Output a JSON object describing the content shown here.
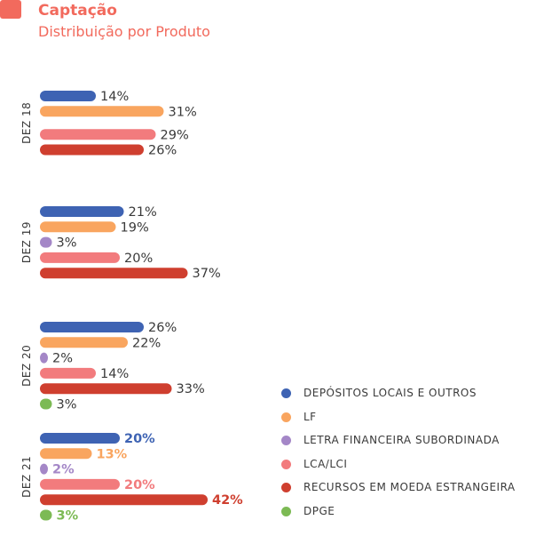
{
  "header": {
    "title": "Captação",
    "subtitle": "Distribuição por Produto"
  },
  "colors": {
    "accent": "#f26a5d",
    "depositos": "#3e63b3",
    "lf": "#f9a55f",
    "letra": "#a487c7",
    "lca": "#f27b7d",
    "recursos": "#cf3f2f",
    "dpge": "#7cba54"
  },
  "legend": [
    {
      "label": "DEPÓSITOS LOCAIS E OUTROS",
      "color": "#3e63b3"
    },
    {
      "label": "LF",
      "color": "#f9a55f"
    },
    {
      "label": "LETRA FINANCEIRA SUBORDINADA",
      "color": "#a487c7"
    },
    {
      "label": "LCA/LCI",
      "color": "#f27b7d"
    },
    {
      "label": "RECURSOS EM MOEDA ESTRANGEIRA",
      "color": "#cf3f2f"
    },
    {
      "label": "DPGE",
      "color": "#7cba54"
    }
  ],
  "chart_data": {
    "type": "bar",
    "orientation": "horizontal",
    "title": "Captação",
    "subtitle": "Distribuição por Produto",
    "unit": "%",
    "legend_position": "bottom-right",
    "grid": false,
    "groups": [
      {
        "label": "DEZ 18",
        "bars": [
          {
            "series": "DEPÓSITOS LOCAIS E OUTROS",
            "value": 14,
            "label": "14%"
          },
          {
            "series": "LF",
            "value": 31,
            "label": "31%"
          },
          {
            "series": "LCA/LCI",
            "value": 29,
            "label": "29%"
          },
          {
            "series": "RECURSOS EM MOEDA ESTRANGEIRA",
            "value": 26,
            "label": "26%"
          }
        ]
      },
      {
        "label": "DEZ 19",
        "bars": [
          {
            "series": "DEPÓSITOS LOCAIS E OUTROS",
            "value": 21,
            "label": "21%"
          },
          {
            "series": "LF",
            "value": 19,
            "label": "19%"
          },
          {
            "series": "LETRA FINANCEIRA SUBORDINADA",
            "value": 3,
            "label": "3%"
          },
          {
            "series": "LCA/LCI",
            "value": 20,
            "label": "20%"
          },
          {
            "series": "RECURSOS EM MOEDA ESTRANGEIRA",
            "value": 37,
            "label": "37%"
          }
        ]
      },
      {
        "label": "DEZ 20",
        "bars": [
          {
            "series": "DEPÓSITOS LOCAIS E OUTROS",
            "value": 26,
            "label": "26%"
          },
          {
            "series": "LF",
            "value": 22,
            "label": "22%"
          },
          {
            "series": "LETRA FINANCEIRA SUBORDINADA",
            "value": 2,
            "label": "2%"
          },
          {
            "series": "LCA/LCI",
            "value": 14,
            "label": "14%"
          },
          {
            "series": "RECURSOS EM MOEDA ESTRANGEIRA",
            "value": 33,
            "label": "33%"
          },
          {
            "series": "DPGE",
            "value": 3,
            "label": "3%"
          }
        ]
      },
      {
        "label": "DEZ 21",
        "highlight": true,
        "bars": [
          {
            "series": "DEPÓSITOS LOCAIS E OUTROS",
            "value": 20,
            "label": "20%"
          },
          {
            "series": "LF",
            "value": 13,
            "label": "13%"
          },
          {
            "series": "LETRA FINANCEIRA SUBORDINADA",
            "value": 2,
            "label": "2%"
          },
          {
            "series": "LCA/LCI",
            "value": 20,
            "label": "20%"
          },
          {
            "series": "RECURSOS EM MOEDA ESTRANGEIRA",
            "value": 42,
            "label": "42%"
          },
          {
            "series": "DPGE",
            "value": 3,
            "label": "3%"
          }
        ]
      }
    ]
  }
}
